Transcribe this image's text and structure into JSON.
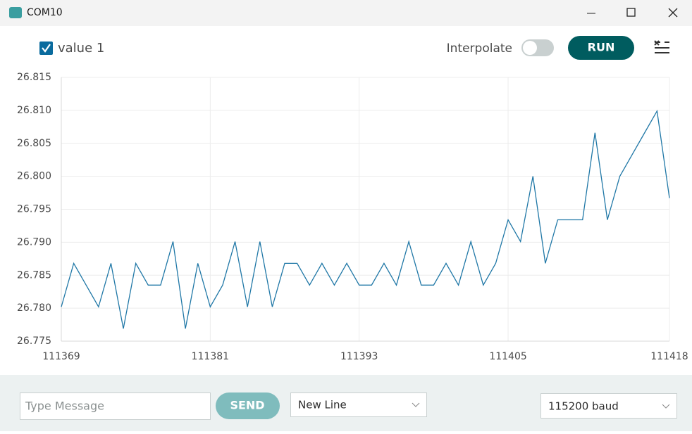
{
  "window": {
    "title": "COM10"
  },
  "toolbar": {
    "interpolate": "Interpolate",
    "run": "RUN"
  },
  "footer": {
    "message_placeholder": "Type Message",
    "send": "SEND",
    "line_ending": "New Line",
    "baud": "115200 baud"
  },
  "chart_data": {
    "type": "line",
    "x": [
      111369,
      111370,
      111371,
      111372,
      111373,
      111374,
      111375,
      111376,
      111377,
      111378,
      111379,
      111380,
      111381,
      111382,
      111383,
      111384,
      111385,
      111386,
      111387,
      111388,
      111389,
      111390,
      111391,
      111392,
      111393,
      111394,
      111395,
      111396,
      111397,
      111398,
      111399,
      111400,
      111401,
      111402,
      111403,
      111404,
      111405,
      111406,
      111407,
      111408,
      111409,
      111410,
      111411,
      111412,
      111413,
      111414,
      111415,
      111416,
      111417,
      111418
    ],
    "series": [
      {
        "name": "value 1",
        "color": "#1f77a6",
        "values": [
          26.7802,
          26.7868,
          26.7835,
          26.7802,
          26.7868,
          26.7769,
          26.7868,
          26.7835,
          26.7835,
          26.7901,
          26.7769,
          26.7868,
          26.7802,
          26.7835,
          26.7901,
          26.7802,
          26.7901,
          26.7802,
          26.7868,
          26.7868,
          26.7835,
          26.7868,
          26.7835,
          26.7868,
          26.7835,
          26.7835,
          26.7868,
          26.7835,
          26.7901,
          26.7835,
          26.7835,
          26.7868,
          26.7835,
          26.7901,
          26.7835,
          26.7868,
          26.7934,
          26.7901,
          26.8,
          26.7868,
          26.7934,
          26.7934,
          26.7934,
          26.8066,
          26.7934,
          26.8,
          26.8033,
          26.8066,
          26.8099,
          26.7967
        ]
      }
    ],
    "xlim": [
      111369,
      111418
    ],
    "xticks": [
      111369,
      111381,
      111393,
      111405,
      111418
    ],
    "ylim": [
      26.775,
      26.815
    ],
    "yticks": [
      26.775,
      {
        "value": 26.78,
        "label": "26.780"
      },
      26.785,
      {
        "value": 26.79,
        "label": "26.790"
      },
      26.795,
      {
        "value": 26.8,
        "label": "26.800"
      },
      26.805,
      {
        "value": 26.81,
        "label": "26.810"
      },
      26.815
    ],
    "grid": true
  }
}
